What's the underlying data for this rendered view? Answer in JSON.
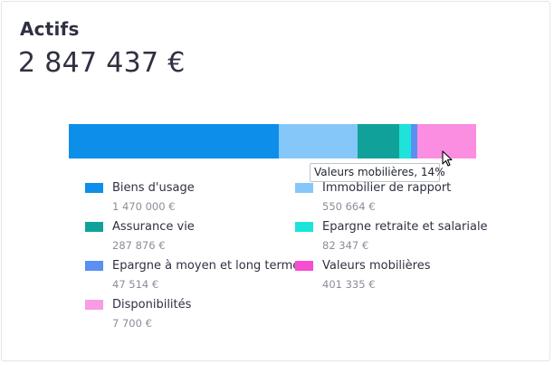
{
  "header": {
    "title": "Actifs",
    "total": "2 847 437 €"
  },
  "tooltip": {
    "text": "Valeurs mobilières, 14%"
  },
  "chart_data": {
    "type": "bar",
    "orientation": "horizontal-stacked",
    "categories": [
      "Biens d'usage",
      "Immobilier de rapport",
      "Assurance vie",
      "Epargne retraite et salariale",
      "Epargne à moyen et long terme",
      "Valeurs mobilières",
      "Disponibilités"
    ],
    "values": [
      1470000,
      550664,
      287876,
      82347,
      47514,
      401335,
      7700
    ],
    "colors": [
      "#0d8ee9",
      "#86c7f9",
      "#10a29a",
      "#1de3da",
      "#5b8ff2",
      "#fb8ee0",
      "#f98ede"
    ]
  },
  "legend": [
    {
      "label": "Biens d'usage",
      "value": "1 470 000 €",
      "color": "#0d8ee9"
    },
    {
      "label": "Immobilier de rapport",
      "value": "550 664 €",
      "color": "#86c7f9"
    },
    {
      "label": "Assurance vie",
      "value": "287 876 €",
      "color": "#10a29a"
    },
    {
      "label": "Epargne retraite et salariale",
      "value": "82 347 €",
      "color": "#1de3da"
    },
    {
      "label": "Epargne à moyen et long terme",
      "value": "47 514 €",
      "color": "#5b8ff2"
    },
    {
      "label": "Valeurs mobilières",
      "value": "401 335 €",
      "color": "#f54ed2"
    },
    {
      "label": "Disponibilités",
      "value": "7 700 €",
      "color": "#f99ce6"
    }
  ]
}
